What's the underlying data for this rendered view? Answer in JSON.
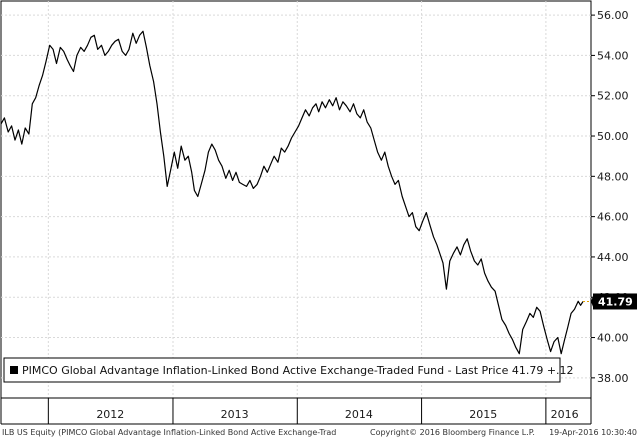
{
  "chart_data": {
    "type": "line",
    "title": "",
    "xlabel": "",
    "ylabel": "",
    "ylim": [
      37,
      56.7
    ],
    "y_ticks": [
      "38.00",
      "40.00",
      "42.00",
      "44.00",
      "46.00",
      "48.00",
      "50.00",
      "52.00",
      "54.00",
      "56.00"
    ],
    "x_ticks": [
      "2012",
      "2013",
      "2014",
      "2015",
      "2016"
    ],
    "x_range": [
      "2011-08-15",
      "2016-04-19"
    ],
    "grid": true,
    "legend_position": "bottom-left",
    "series": [
      {
        "name": "PIMCO Global Advantage Inflation-Linked Bond Active Exchange-Traded Fund - Last Price 41.79 +.12",
        "color": "#000000",
        "points": [
          [
            "2011-08-15",
            50.6
          ],
          [
            "2011-08-25",
            50.9
          ],
          [
            "2011-09-05",
            50.2
          ],
          [
            "2011-09-15",
            50.5
          ],
          [
            "2011-09-25",
            49.8
          ],
          [
            "2011-10-05",
            50.3
          ],
          [
            "2011-10-15",
            49.6
          ],
          [
            "2011-10-25",
            50.4
          ],
          [
            "2011-11-05",
            50.1
          ],
          [
            "2011-11-15",
            51.6
          ],
          [
            "2011-11-25",
            51.9
          ],
          [
            "2011-12-05",
            52.5
          ],
          [
            "2011-12-15",
            53.0
          ],
          [
            "2011-12-25",
            53.7
          ],
          [
            "2012-01-05",
            54.5
          ],
          [
            "2012-01-15",
            54.3
          ],
          [
            "2012-01-25",
            53.6
          ],
          [
            "2012-02-05",
            54.4
          ],
          [
            "2012-02-15",
            54.2
          ],
          [
            "2012-02-25",
            53.8
          ],
          [
            "2012-03-05",
            53.5
          ],
          [
            "2012-03-15",
            53.2
          ],
          [
            "2012-03-25",
            54.0
          ],
          [
            "2012-04-05",
            54.4
          ],
          [
            "2012-04-15",
            54.2
          ],
          [
            "2012-04-25",
            54.5
          ],
          [
            "2012-05-05",
            54.9
          ],
          [
            "2012-05-15",
            55.0
          ],
          [
            "2012-05-25",
            54.3
          ],
          [
            "2012-06-05",
            54.5
          ],
          [
            "2012-06-15",
            54.0
          ],
          [
            "2012-06-25",
            54.2
          ],
          [
            "2012-07-05",
            54.5
          ],
          [
            "2012-07-15",
            54.7
          ],
          [
            "2012-07-25",
            54.8
          ],
          [
            "2012-08-05",
            54.2
          ],
          [
            "2012-08-15",
            54.0
          ],
          [
            "2012-08-25",
            54.3
          ],
          [
            "2012-09-05",
            55.1
          ],
          [
            "2012-09-15",
            54.6
          ],
          [
            "2012-09-25",
            55.0
          ],
          [
            "2012-10-05",
            55.2
          ],
          [
            "2012-10-15",
            54.4
          ],
          [
            "2012-10-25",
            53.5
          ],
          [
            "2012-11-05",
            52.7
          ],
          [
            "2012-11-15",
            51.6
          ],
          [
            "2012-11-25",
            50.2
          ],
          [
            "2012-12-05",
            49.0
          ],
          [
            "2012-12-15",
            47.5
          ],
          [
            "2012-12-25",
            48.3
          ],
          [
            "2013-01-05",
            49.2
          ],
          [
            "2013-01-15",
            48.4
          ],
          [
            "2013-01-25",
            49.5
          ],
          [
            "2013-02-05",
            48.8
          ],
          [
            "2013-02-15",
            49.0
          ],
          [
            "2013-02-25",
            48.2
          ],
          [
            "2013-03-05",
            47.3
          ],
          [
            "2013-03-15",
            47.0
          ],
          [
            "2013-03-25",
            47.6
          ],
          [
            "2013-04-05",
            48.3
          ],
          [
            "2013-04-15",
            49.2
          ],
          [
            "2013-04-25",
            49.6
          ],
          [
            "2013-05-05",
            49.3
          ],
          [
            "2013-05-15",
            48.8
          ],
          [
            "2013-05-25",
            48.5
          ],
          [
            "2013-06-05",
            47.9
          ],
          [
            "2013-06-15",
            48.3
          ],
          [
            "2013-06-25",
            47.8
          ],
          [
            "2013-07-05",
            48.2
          ],
          [
            "2013-07-15",
            47.7
          ],
          [
            "2013-07-25",
            47.6
          ],
          [
            "2013-08-05",
            47.5
          ],
          [
            "2013-08-15",
            47.8
          ],
          [
            "2013-08-25",
            47.4
          ],
          [
            "2013-09-05",
            47.6
          ],
          [
            "2013-09-15",
            48.0
          ],
          [
            "2013-09-25",
            48.5
          ],
          [
            "2013-10-05",
            48.2
          ],
          [
            "2013-10-15",
            48.6
          ],
          [
            "2013-10-25",
            49.0
          ],
          [
            "2013-11-05",
            48.7
          ],
          [
            "2013-11-15",
            49.4
          ],
          [
            "2013-11-25",
            49.2
          ],
          [
            "2013-12-05",
            49.5
          ],
          [
            "2013-12-15",
            49.9
          ],
          [
            "2014-01-05",
            50.5
          ],
          [
            "2014-01-15",
            50.9
          ],
          [
            "2014-01-25",
            51.3
          ],
          [
            "2014-02-05",
            51.0
          ],
          [
            "2014-02-15",
            51.4
          ],
          [
            "2014-02-25",
            51.6
          ],
          [
            "2014-03-05",
            51.2
          ],
          [
            "2014-03-15",
            51.7
          ],
          [
            "2014-03-25",
            51.4
          ],
          [
            "2014-04-05",
            51.8
          ],
          [
            "2014-04-15",
            51.5
          ],
          [
            "2014-04-25",
            51.9
          ],
          [
            "2014-05-05",
            51.3
          ],
          [
            "2014-05-15",
            51.7
          ],
          [
            "2014-05-25",
            51.5
          ],
          [
            "2014-06-05",
            51.2
          ],
          [
            "2014-06-15",
            51.6
          ],
          [
            "2014-06-25",
            51.1
          ],
          [
            "2014-07-05",
            50.9
          ],
          [
            "2014-07-15",
            51.3
          ],
          [
            "2014-07-25",
            50.7
          ],
          [
            "2014-08-05",
            50.4
          ],
          [
            "2014-08-15",
            49.8
          ],
          [
            "2014-08-25",
            49.2
          ],
          [
            "2014-09-05",
            48.8
          ],
          [
            "2014-09-15",
            49.2
          ],
          [
            "2014-09-25",
            48.5
          ],
          [
            "2014-10-05",
            48.0
          ],
          [
            "2014-10-15",
            47.6
          ],
          [
            "2014-10-25",
            47.8
          ],
          [
            "2014-11-05",
            47.0
          ],
          [
            "2014-11-15",
            46.5
          ],
          [
            "2014-11-25",
            46.0
          ],
          [
            "2014-12-05",
            46.2
          ],
          [
            "2014-12-15",
            45.5
          ],
          [
            "2014-12-25",
            45.3
          ],
          [
            "2015-01-05",
            45.8
          ],
          [
            "2015-01-15",
            46.2
          ],
          [
            "2015-01-25",
            45.6
          ],
          [
            "2015-02-05",
            45.0
          ],
          [
            "2015-02-15",
            44.6
          ],
          [
            "2015-02-25",
            44.1
          ],
          [
            "2015-03-05",
            43.7
          ],
          [
            "2015-03-15",
            42.4
          ],
          [
            "2015-03-25",
            43.8
          ],
          [
            "2015-04-05",
            44.2
          ],
          [
            "2015-04-15",
            44.5
          ],
          [
            "2015-04-25",
            44.1
          ],
          [
            "2015-05-05",
            44.6
          ],
          [
            "2015-05-15",
            44.9
          ],
          [
            "2015-05-25",
            44.3
          ],
          [
            "2015-06-05",
            43.8
          ],
          [
            "2015-06-15",
            43.6
          ],
          [
            "2015-06-25",
            43.9
          ],
          [
            "2015-07-05",
            43.2
          ],
          [
            "2015-07-15",
            42.8
          ],
          [
            "2015-07-25",
            42.5
          ],
          [
            "2015-08-05",
            42.3
          ],
          [
            "2015-08-15",
            41.6
          ],
          [
            "2015-08-25",
            40.9
          ],
          [
            "2015-09-05",
            40.6
          ],
          [
            "2015-09-15",
            40.2
          ],
          [
            "2015-09-25",
            39.9
          ],
          [
            "2015-10-05",
            39.5
          ],
          [
            "2015-10-15",
            39.2
          ],
          [
            "2015-10-25",
            40.4
          ],
          [
            "2015-11-05",
            40.8
          ],
          [
            "2015-11-15",
            41.2
          ],
          [
            "2015-11-25",
            41.0
          ],
          [
            "2015-12-05",
            41.5
          ],
          [
            "2015-12-15",
            41.3
          ],
          [
            "2015-12-25",
            40.6
          ],
          [
            "2016-01-05",
            39.9
          ],
          [
            "2016-01-15",
            39.3
          ],
          [
            "2016-01-25",
            39.8
          ],
          [
            "2016-02-05",
            40.0
          ],
          [
            "2016-02-15",
            39.2
          ],
          [
            "2016-02-25",
            39.9
          ],
          [
            "2016-03-05",
            40.5
          ],
          [
            "2016-03-15",
            41.2
          ],
          [
            "2016-03-25",
            41.4
          ],
          [
            "2016-04-05",
            41.8
          ],
          [
            "2016-04-12",
            41.6
          ],
          [
            "2016-04-19",
            41.79
          ]
        ]
      }
    ],
    "last_price_label": "41.79",
    "last_price_color": "#000000"
  },
  "legend": {
    "text": "PIMCO Global Advantage Inflation-Linked Bond Active Exchange-Traded Fund - Last Price 41.79  +.12"
  },
  "footer": {
    "left": "ILB US Equity (PIMCO Global Advantage Inflation-Linked Bond Active Exchange-Trad",
    "center": "Copyright© 2016 Bloomberg Finance L.P.",
    "right": "19-Apr-2016 10:30:40"
  }
}
